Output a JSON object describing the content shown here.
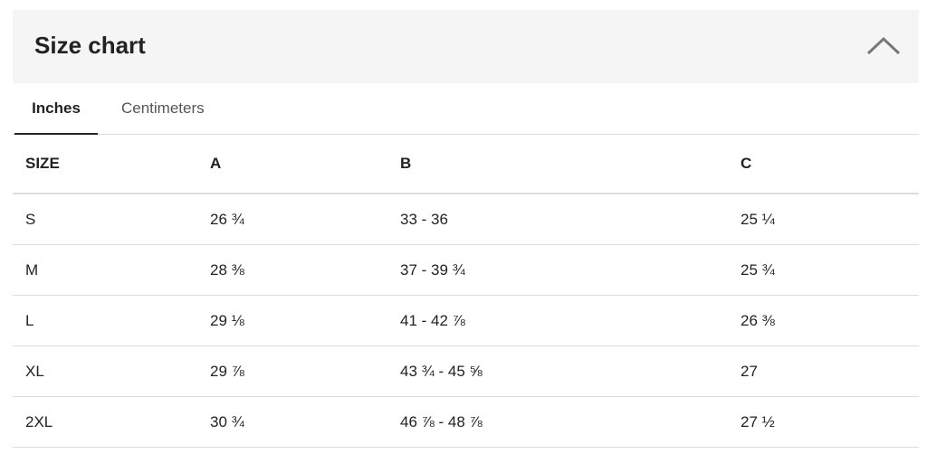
{
  "header": {
    "title": "Size chart"
  },
  "tabs": [
    "Inches",
    "Centimeters"
  ],
  "table": {
    "columns": [
      "SIZE",
      "A",
      "B",
      "C"
    ],
    "rows": [
      [
        "S",
        "26 ¾",
        "33 - 36",
        "25 ¼"
      ],
      [
        "M",
        "28 ⅜",
        "37 - 39 ¾",
        "25 ¾"
      ],
      [
        "L",
        "29 ⅛",
        "41 - 42 ⅞",
        "26 ⅜"
      ],
      [
        "XL",
        "29 ⅞",
        "43 ¾ - 45 ⅝",
        "27"
      ],
      [
        "2XL",
        "30 ¾",
        "46 ⅞ - 48 ⅞",
        "27 ½"
      ]
    ]
  }
}
